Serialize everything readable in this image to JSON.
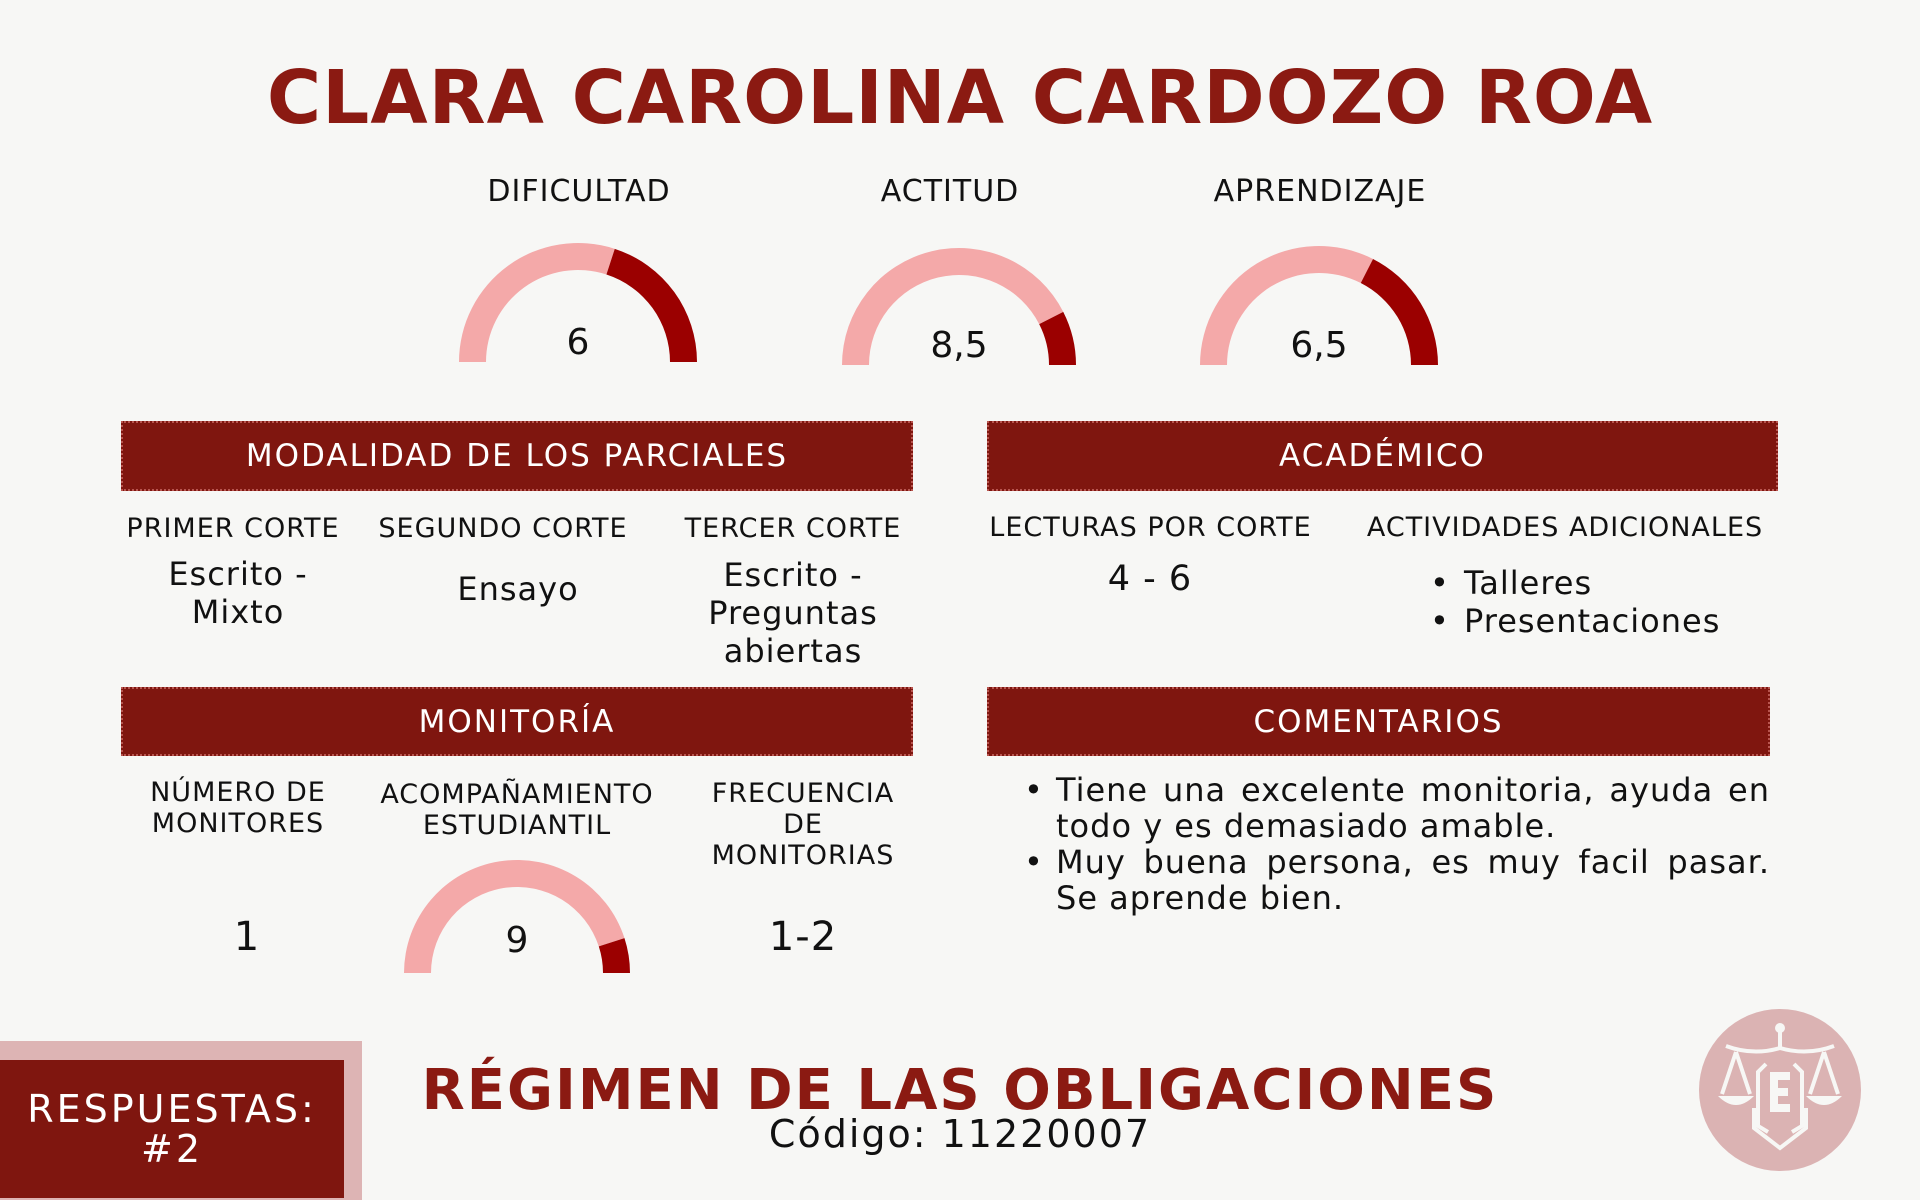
{
  "title": "CLARA CAROLINA CARDOZO ROA",
  "colors": {
    "accent": "#7f160f",
    "gauge_light": "#f4a9a9",
    "gauge_dark": "#9b0000"
  },
  "gauges": [
    {
      "label": "DIFICULTAD",
      "value": 6,
      "display": "6",
      "max": 10
    },
    {
      "label": "ACTITUD",
      "value": 8.5,
      "display": "8,5",
      "max": 10
    },
    {
      "label": "APRENDIZAJE",
      "value": 6.5,
      "display": "6,5",
      "max": 10
    }
  ],
  "parciales": {
    "header": "MODALIDAD DE LOS PARCIALES",
    "columns": [
      {
        "label": "PRIMER CORTE",
        "value": "Escrito - Mixto"
      },
      {
        "label": "SEGUNDO CORTE",
        "value": "Ensayo"
      },
      {
        "label": "TERCER CORTE",
        "value": "Escrito - Preguntas abiertas"
      }
    ]
  },
  "academico": {
    "header": "ACADÉMICO",
    "lecturas_label": "LECTURAS POR CORTE",
    "lecturas_value": "4 - 6",
    "actividades_label": "ACTIVIDADES ADICIONALES",
    "actividades": [
      "Talleres",
      "Presentaciones"
    ]
  },
  "monitoria": {
    "header": "MONITORÍA",
    "numero_label": "NÚMERO DE MONITORES",
    "numero_value": "1",
    "acompanamiento_label": "ACOMPAÑAMIENTO ESTUDIANTIL",
    "acompanamiento": {
      "value": 9,
      "display": "9",
      "max": 10
    },
    "frecuencia_label": "FRECUENCIA DE MONITORIAS",
    "frecuencia_value": "1-2"
  },
  "comentarios": {
    "header": "COMENTARIOS",
    "items": [
      "Tiene una excelente monitoria, ayuda en todo y es demasiado amable.",
      "Muy buena persona, es muy facil pasar. Se aprende bien."
    ]
  },
  "respuestas": {
    "label": "RESPUESTAS:",
    "value": "#2"
  },
  "course": {
    "name": "RÉGIMEN DE LAS OBLIGACIONES",
    "code": "Código: 11220007"
  },
  "logo": {
    "icon": "scales-of-justice-shield-logo",
    "letters": "CEJ"
  }
}
